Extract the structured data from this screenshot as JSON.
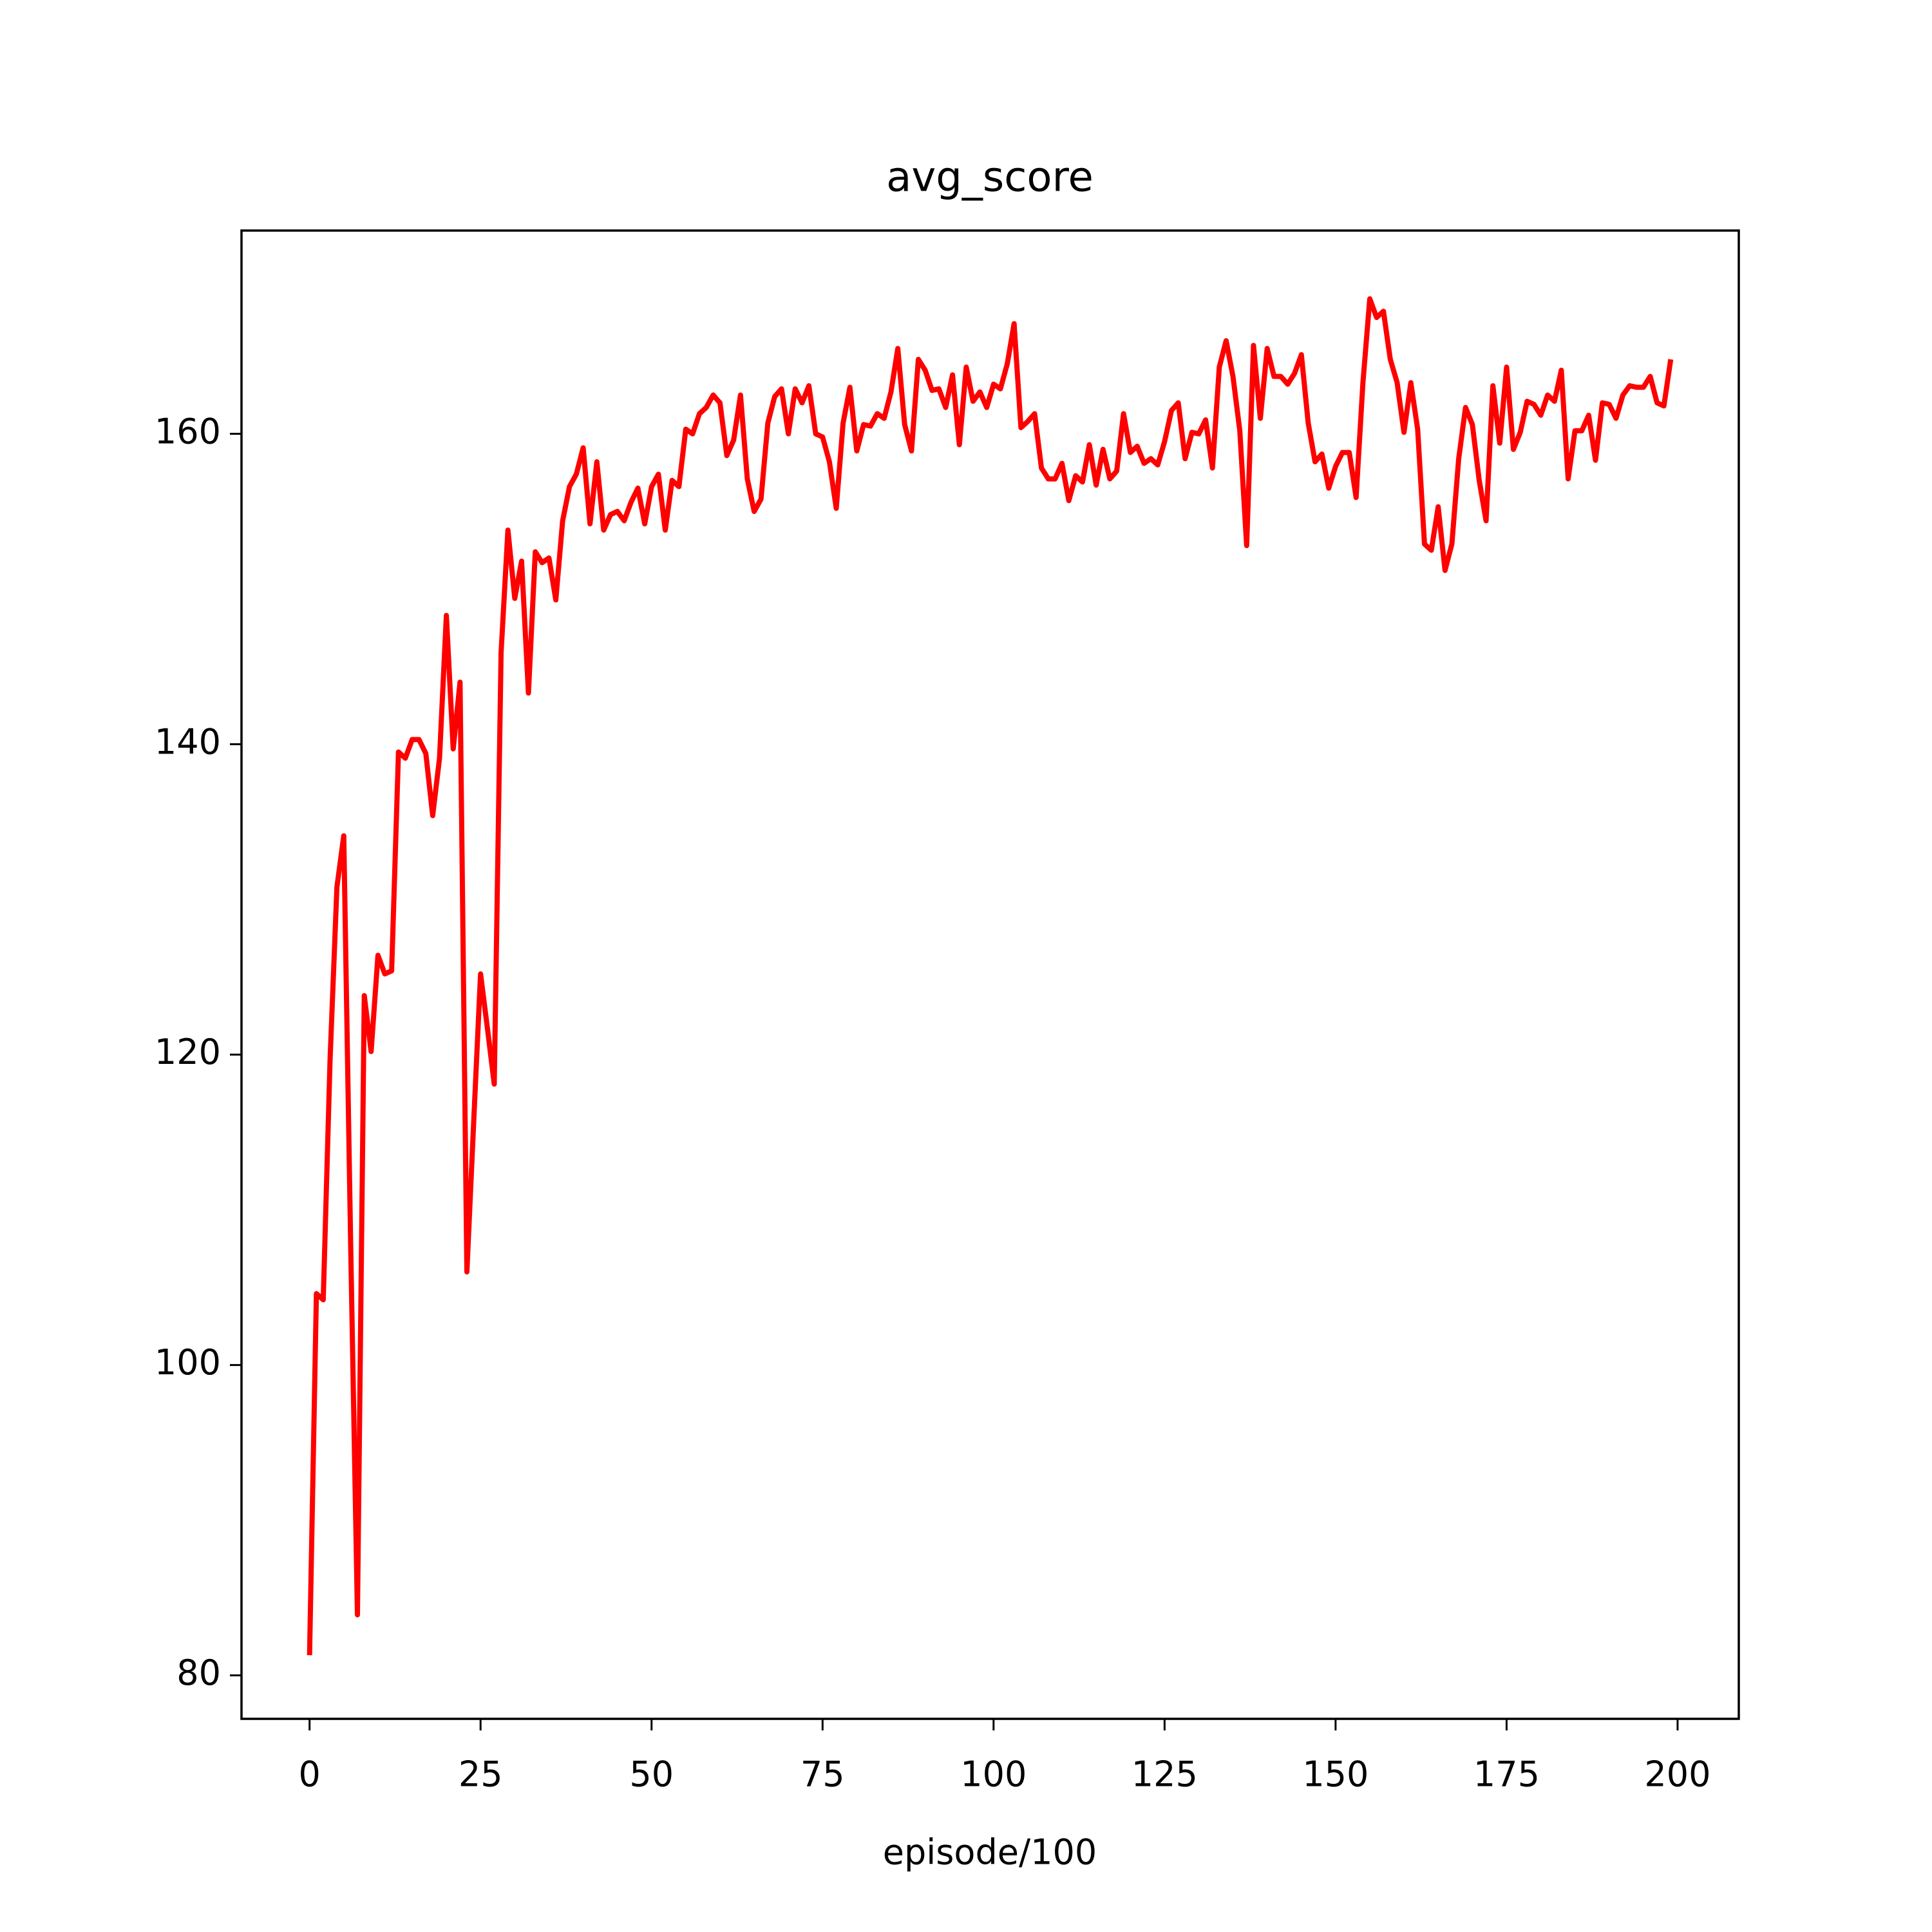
{
  "chart_data": {
    "type": "line",
    "title": "avg_score",
    "xlabel": "episode/100",
    "color": "#ff0000",
    "x": [
      0,
      1,
      2,
      3,
      4,
      5,
      6,
      7,
      8,
      9,
      10,
      11,
      12,
      13,
      14,
      15,
      16,
      17,
      18,
      19,
      20,
      21,
      22,
      23,
      24,
      25,
      26,
      27,
      28,
      29,
      30,
      31,
      32,
      33,
      34,
      35,
      36,
      37,
      38,
      39,
      40,
      41,
      42,
      43,
      44,
      45,
      46,
      47,
      48,
      49,
      50,
      51,
      52,
      53,
      54,
      55,
      56,
      57,
      58,
      59,
      60,
      61,
      62,
      63,
      64,
      65,
      66,
      67,
      68,
      69,
      70,
      71,
      72,
      73,
      74,
      75,
      76,
      77,
      78,
      79,
      80,
      81,
      82,
      83,
      84,
      85,
      86,
      87,
      88,
      89,
      90,
      91,
      92,
      93,
      94,
      95,
      96,
      97,
      98,
      99,
      100,
      101,
      102,
      103,
      104,
      105,
      106,
      107,
      108,
      109,
      110,
      111,
      112,
      113,
      114,
      115,
      116,
      117,
      118,
      119,
      120,
      121,
      122,
      123,
      124,
      125,
      126,
      127,
      128,
      129,
      130,
      131,
      132,
      133,
      134,
      135,
      136,
      137,
      138,
      139,
      140,
      141,
      142,
      143,
      144,
      145,
      146,
      147,
      148,
      149,
      150,
      151,
      152,
      153,
      154,
      155,
      156,
      157,
      158,
      159,
      160,
      161,
      162,
      163,
      164,
      165,
      166,
      167,
      168,
      169,
      170,
      171,
      172,
      173,
      174,
      175,
      176,
      177,
      178,
      179,
      180,
      181,
      182,
      183,
      184,
      185,
      186,
      187,
      188,
      189,
      190,
      191,
      192,
      193,
      194,
      195,
      196,
      197,
      198,
      199
    ],
    "values": [
      81.3,
      104.6,
      104.2,
      119.7,
      130.8,
      134.1,
      108,
      83.9,
      123.8,
      120.2,
      126.4,
      125.2,
      125.4,
      139.5,
      139.1,
      140.3,
      140.3,
      139.4,
      135.4,
      139.1,
      148.3,
      139.7,
      144.0,
      106.0,
      115.7,
      125.2,
      121.7,
      118.1,
      145.9,
      153.8,
      149.4,
      151.8,
      143.3,
      152.4,
      151.7,
      152.0,
      149.3,
      154.4,
      156.6,
      157.4,
      159.1,
      154.2,
      158.2,
      153.8,
      154.8,
      155.0,
      154.4,
      155.6,
      156.5,
      154.2,
      156.6,
      157.4,
      153.8,
      157.0,
      156.6,
      160.3,
      160.0,
      161.3,
      161.7,
      162.5,
      162.0,
      158.6,
      159.6,
      162.5,
      157.1,
      155.0,
      155.8,
      160.7,
      162.4,
      162.9,
      160.0,
      162.9,
      162.0,
      163.1,
      160.0,
      159.8,
      158.2,
      155.2,
      160.7,
      163.0,
      158.9,
      160.6,
      160.5,
      161.3,
      161.0,
      162.7,
      165.5,
      160.6,
      158.9,
      164.8,
      164.1,
      162.8,
      162.9,
      161.7,
      163.8,
      159.3,
      164.3,
      162.1,
      162.7,
      161.7,
      163.2,
      162.9,
      164.5,
      167.1,
      160.4,
      160.8,
      161.3,
      157.8,
      157.1,
      157.1,
      158.1,
      155.7,
      157.3,
      156.9,
      159.3,
      156.7,
      159.0,
      157.1,
      157.6,
      161.3,
      158.8,
      159.2,
      158.1,
      158.4,
      158.0,
      159.5,
      161.5,
      162.0,
      158.4,
      160.1,
      160.0,
      160.9,
      157.8,
      164.3,
      166.0,
      163.7,
      160.2,
      152.8,
      165.7,
      161.0,
      165.5,
      163.7,
      163.7,
      163.2,
      163.9,
      165.1,
      160.7,
      158.2,
      158.7,
      156.5,
      157.9,
      158.8,
      158.8,
      155.9,
      163.3,
      168.7,
      167.5,
      167.9,
      164.8,
      163.3,
      160.1,
      163.3,
      160.3,
      152.9,
      152.5,
      155.3,
      151.2,
      152.9,
      158.4,
      161.7,
      160.6,
      157.0,
      154.4,
      163.1,
      159.4,
      164.3,
      159.0,
      160.1,
      162.1,
      161.9,
      161.2,
      162.5,
      162.1,
      164.1,
      157.1,
      160.2,
      160.2,
      161.2,
      158.3,
      162.0,
      161.9,
      161.0,
      162.5,
      163.1,
      163.0,
      163.0,
      163.7,
      162.0,
      161.8,
      164.8
    ],
    "xlim": [
      -9.95,
      208.95
    ],
    "ylim": [
      77.2,
      173.1
    ],
    "xticks": [
      0,
      25,
      50,
      75,
      100,
      125,
      150,
      175,
      200
    ],
    "yticks": [
      80,
      100,
      120,
      140,
      160
    ]
  }
}
